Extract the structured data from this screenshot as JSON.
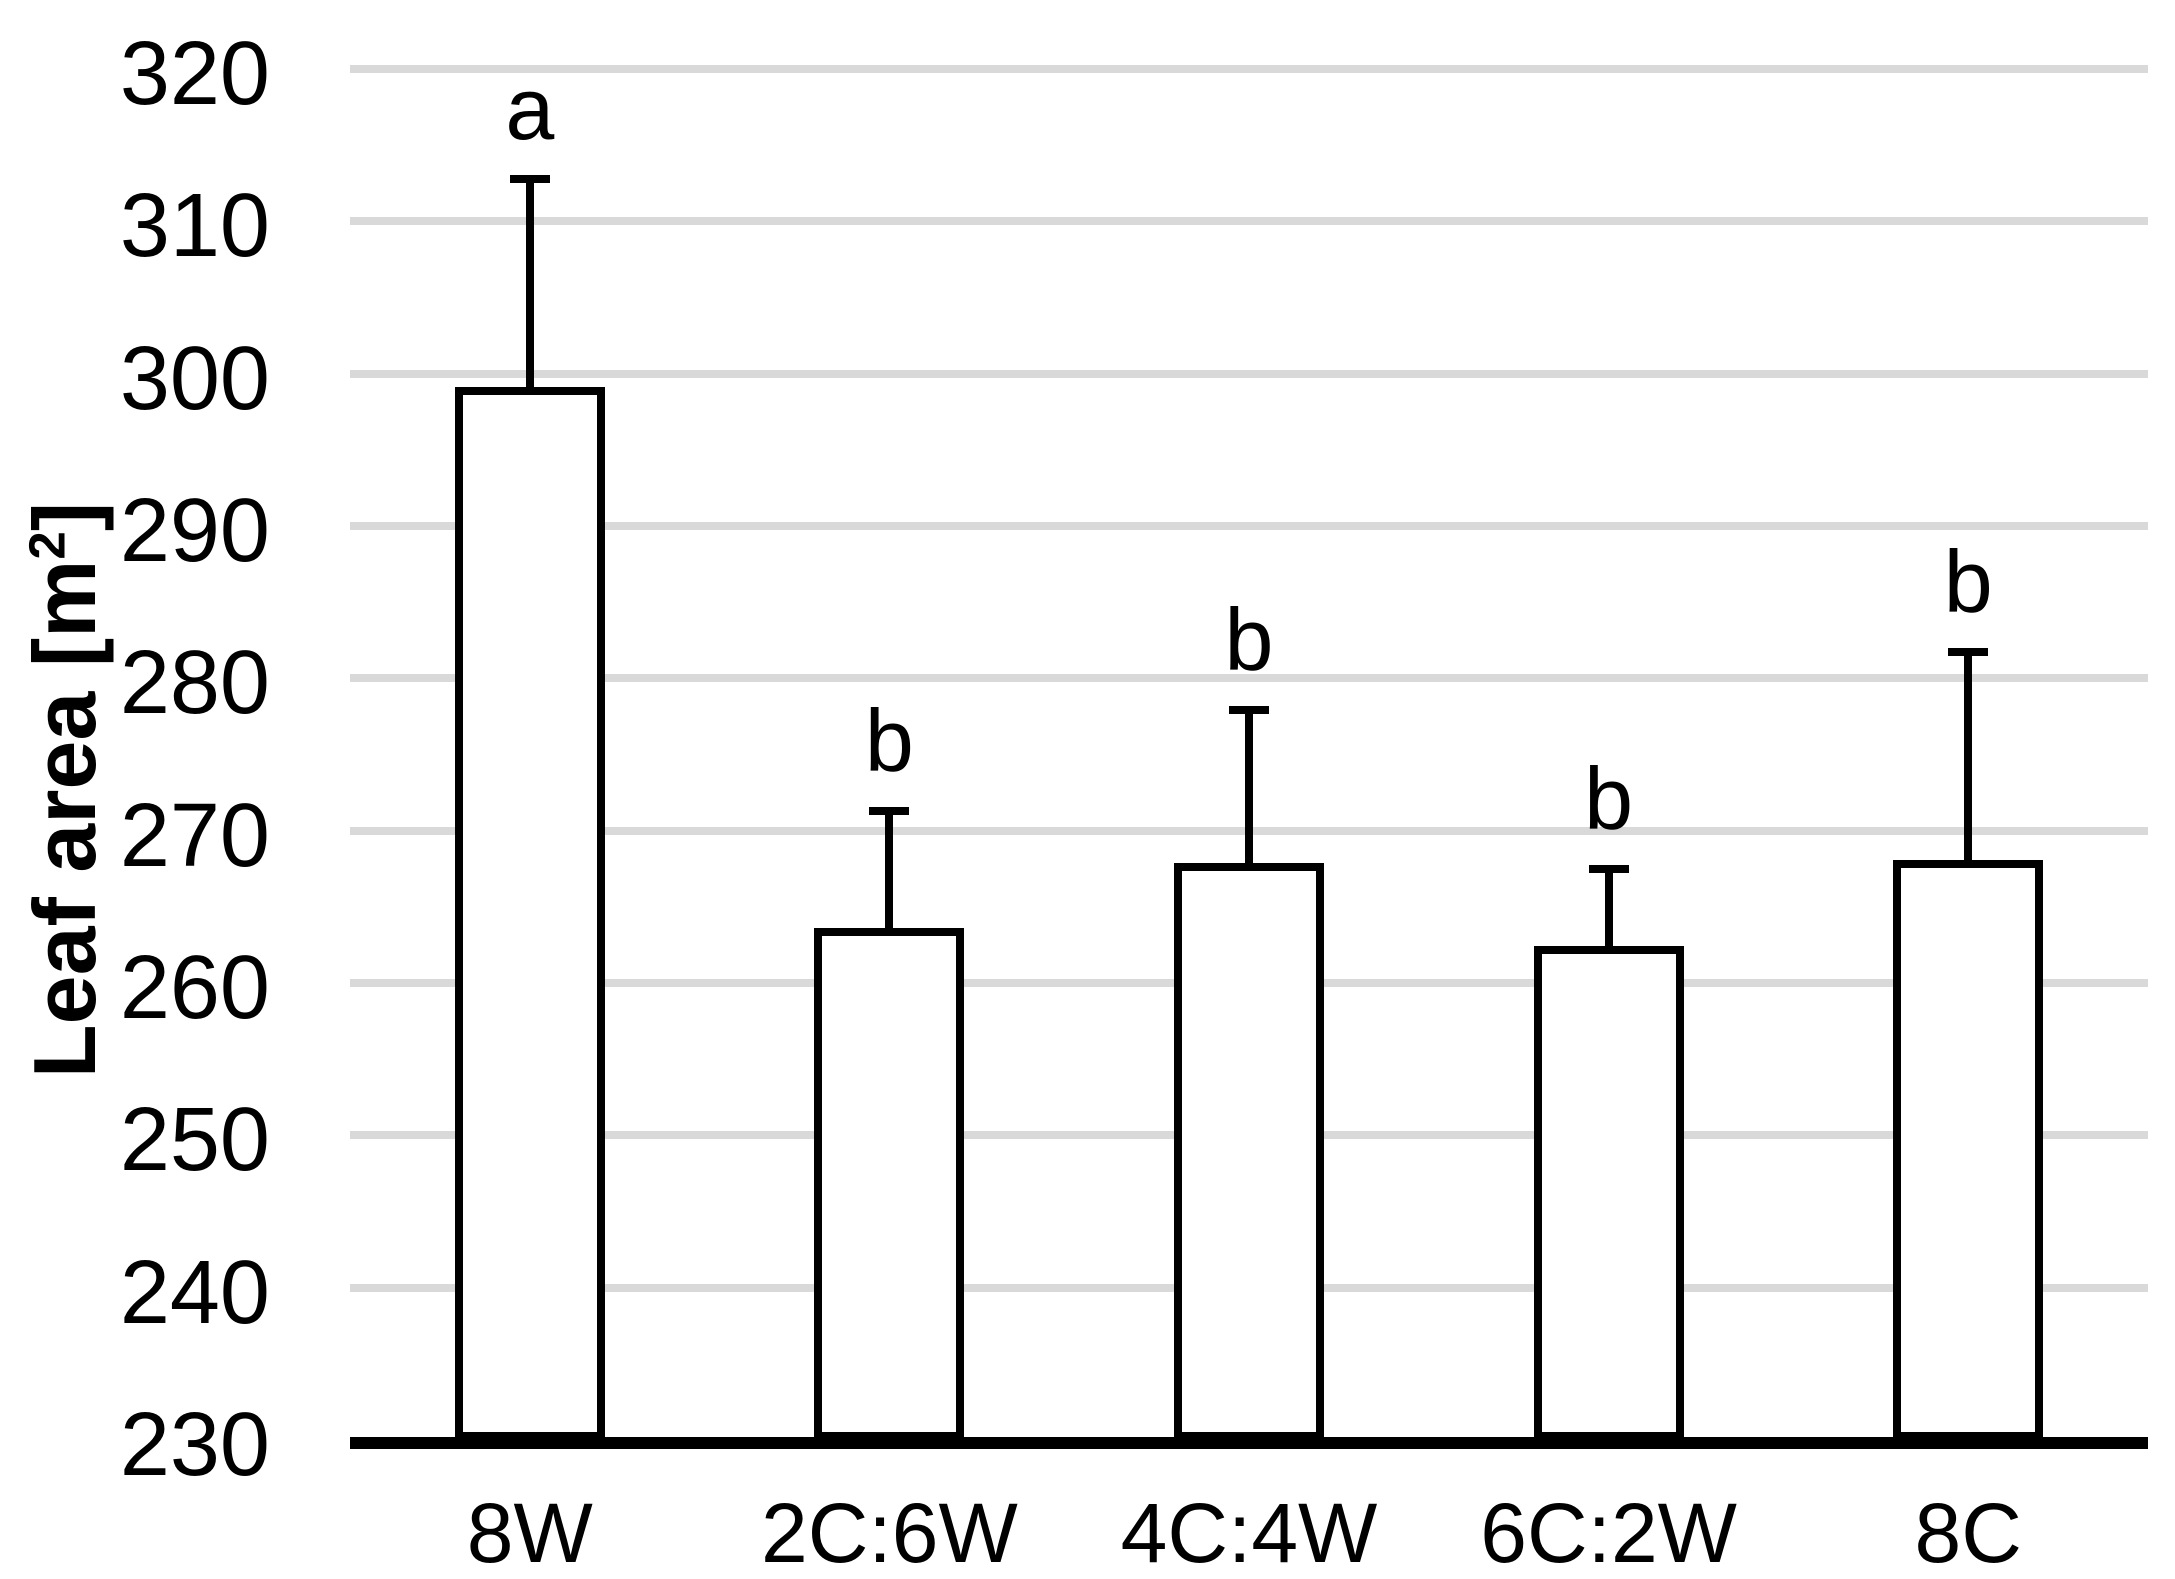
{
  "chart_data": {
    "type": "bar",
    "title": "",
    "categories": [
      "8W",
      "2C:6W",
      "4C:4W",
      "6C:2W",
      "8C"
    ],
    "values": [
      299.1,
      263.6,
      267.9,
      262.4,
      268.1
    ],
    "error_plus": [
      13.7,
      7.7,
      10.0,
      5.1,
      13.6
    ],
    "whisker_tops": [
      312.8,
      271.3,
      277.9,
      267.5,
      281.7
    ],
    "sig_letters": [
      "a",
      "b",
      "b",
      "b",
      "b"
    ],
    "xlabel": "",
    "ylabel": "Leaf area [m²]",
    "ylabel_parts": {
      "base": "Leaf area [m",
      "sup": "2",
      "close": "]"
    },
    "ylim": [
      230,
      320
    ],
    "ytick_step": 10,
    "yticks": [
      230,
      240,
      250,
      260,
      270,
      280,
      290,
      300,
      310,
      320
    ],
    "grid": true,
    "legend": null,
    "colors": {
      "bar_fill": "#ffffff",
      "bar_border": "#000000",
      "error_bar": "#000000",
      "gridline": "#d9d9d9",
      "axis": "#000000",
      "text": "#000000",
      "background": "#ffffff"
    }
  }
}
